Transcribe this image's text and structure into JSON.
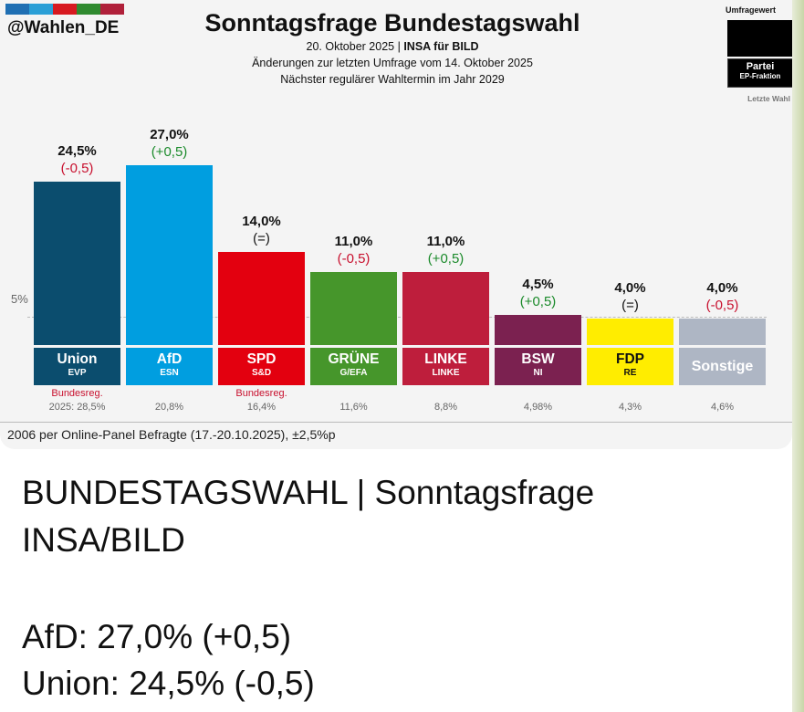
{
  "header": {
    "handle": "@Wahlen_DE",
    "title": "Sonntagsfrage Bundestagswahl",
    "date_line_prefix": "20. Oktober 2025 | ",
    "date_line_bold": "INSA für BILD",
    "change_line": "Änderungen zur letzten Umfrage vom 14. Oktober 2025",
    "next_election_line": "Nächster regulärer Wahltermin im Jahr 2029",
    "strip_colors": [
      "#1f6fb3",
      "#2a9fd6",
      "#d71920",
      "#2f8a2f",
      "#b0203a"
    ]
  },
  "legend": {
    "umfragewert": "Umfragewert",
    "partei": "Partei",
    "ep_fraktion": "EP-Fraktion",
    "letzte_wahl": "Letzte Wahl"
  },
  "threshold_label": "5%",
  "chart_data": {
    "type": "bar",
    "title": "Sonntagsfrage Bundestagswahl",
    "categories": [
      "Union",
      "AfD",
      "SPD",
      "GRÜNE",
      "LINKE",
      "BSW",
      "FDP",
      "Sonstige"
    ],
    "values": [
      24.5,
      27.0,
      14.0,
      11.0,
      11.0,
      4.5,
      4.0,
      4.0
    ],
    "value_labels": [
      "24,5%",
      "27,0%",
      "14,0%",
      "11,0%",
      "11,0%",
      "4,5%",
      "4,0%",
      "4,0%"
    ],
    "changes": [
      "(-0,5)",
      "(+0,5)",
      "(=)",
      "(-0,5)",
      "(+0,5)",
      "(+0,5)",
      "(=)",
      "(-0,5)"
    ],
    "change_types": [
      "neg",
      "pos",
      "eq",
      "neg",
      "pos",
      "pos",
      "eq",
      "neg"
    ],
    "groups": [
      "EVP",
      "ESN",
      "S&D",
      "G/EFA",
      "LINKE",
      "NI",
      "RE",
      ""
    ],
    "colors": [
      "#0b4d6e",
      "#009ee0",
      "#e3000f",
      "#46962b",
      "#be1e3c",
      "#7b2150",
      "#ffed00",
      "#aeb6c4"
    ],
    "label_text_colors": [
      "#ffffff",
      "#ffffff",
      "#ffffff",
      "#ffffff",
      "#ffffff",
      "#ffffff",
      "#111111",
      "#ffffff"
    ],
    "last_election": [
      "2025: 28,5%",
      "20,8%",
      "16,4%",
      "11,6%",
      "8,8%",
      "4,98%",
      "4,3%",
      "4,6%"
    ],
    "gov_labels": [
      "Bundesreg.",
      "",
      "Bundesreg.",
      "",
      "",
      "",
      "",
      ""
    ],
    "threshold": 5,
    "ylim": [
      0,
      30
    ],
    "xlabel": "",
    "ylabel": ""
  },
  "footer": "2006 per Online-Panel Befragte (17.-20.10.2025), ±2,5%p",
  "post": {
    "line1": "BUNDESTAGSWAHL | Sonntagsfrage",
    "line2": "INSA/BILD",
    "line3": "AfD: 27,0% (+0,5)",
    "line4": "Union: 24,5% (-0,5)"
  }
}
